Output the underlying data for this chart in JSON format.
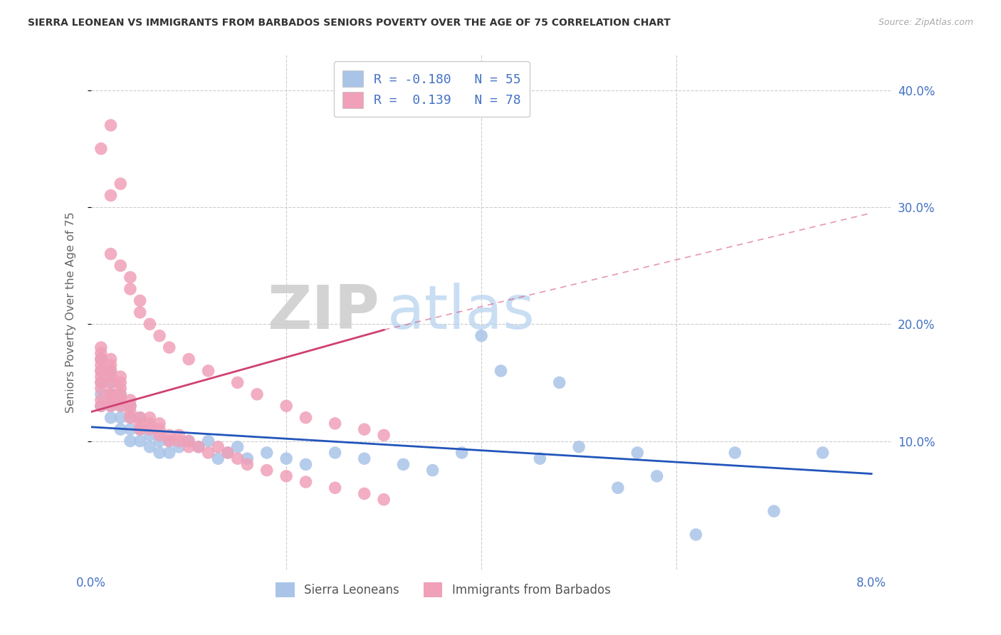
{
  "title": "SIERRA LEONEAN VS IMMIGRANTS FROM BARBADOS SENIORS POVERTY OVER THE AGE OF 75 CORRELATION CHART",
  "source": "Source: ZipAtlas.com",
  "ylabel": "Seniors Poverty Over the Age of 75",
  "xlim": [
    0.0,
    0.082
  ],
  "ylim": [
    -0.01,
    0.43
  ],
  "yticks": [
    0.1,
    0.2,
    0.3,
    0.4
  ],
  "ytick_labels": [
    "10.0%",
    "20.0%",
    "30.0%",
    "40.0%"
  ],
  "xtick_positions": [
    0.0,
    0.02,
    0.04,
    0.06,
    0.08
  ],
  "xtick_labels": [
    "0.0%",
    "",
    "",
    "",
    "8.0%"
  ],
  "color_blue": "#aac4e8",
  "color_pink": "#f0a0b8",
  "color_blue_line": "#2255bb",
  "color_pink_line": "#d04070",
  "color_text": "#4472c4",
  "color_grid": "#cccccc",
  "background": "#ffffff",
  "blue_trend": [
    0.112,
    0.072
  ],
  "pink_trend_solid": [
    0.125,
    0.195,
    0.03
  ],
  "pink_trend_dashed": [
    0.03,
    0.08,
    0.195,
    0.295
  ],
  "blue_x": [
    0.001,
    0.001,
    0.001,
    0.001,
    0.001,
    0.002,
    0.002,
    0.002,
    0.002,
    0.002,
    0.003,
    0.003,
    0.003,
    0.003,
    0.004,
    0.004,
    0.004,
    0.004,
    0.005,
    0.005,
    0.005,
    0.006,
    0.006,
    0.007,
    0.007,
    0.008,
    0.008,
    0.009,
    0.01,
    0.011,
    0.012,
    0.013,
    0.014,
    0.015,
    0.016,
    0.018,
    0.02,
    0.022,
    0.025,
    0.028,
    0.032,
    0.035,
    0.038,
    0.042,
    0.046,
    0.05,
    0.054,
    0.058,
    0.062,
    0.066,
    0.04,
    0.048,
    0.056,
    0.07,
    0.075
  ],
  "blue_y": [
    0.15,
    0.16,
    0.17,
    0.13,
    0.14,
    0.12,
    0.13,
    0.14,
    0.15,
    0.16,
    0.11,
    0.12,
    0.13,
    0.14,
    0.1,
    0.11,
    0.12,
    0.13,
    0.1,
    0.11,
    0.12,
    0.095,
    0.105,
    0.09,
    0.1,
    0.09,
    0.1,
    0.095,
    0.1,
    0.095,
    0.1,
    0.085,
    0.09,
    0.095,
    0.085,
    0.09,
    0.085,
    0.08,
    0.09,
    0.085,
    0.08,
    0.075,
    0.09,
    0.16,
    0.085,
    0.095,
    0.06,
    0.07,
    0.02,
    0.09,
    0.19,
    0.15,
    0.09,
    0.04,
    0.09
  ],
  "pink_x": [
    0.001,
    0.001,
    0.001,
    0.001,
    0.001,
    0.001,
    0.001,
    0.001,
    0.001,
    0.001,
    0.002,
    0.002,
    0.002,
    0.002,
    0.002,
    0.002,
    0.002,
    0.002,
    0.002,
    0.003,
    0.003,
    0.003,
    0.003,
    0.003,
    0.003,
    0.004,
    0.004,
    0.004,
    0.004,
    0.005,
    0.005,
    0.005,
    0.006,
    0.006,
    0.006,
    0.007,
    0.007,
    0.007,
    0.008,
    0.008,
    0.009,
    0.009,
    0.01,
    0.01,
    0.011,
    0.012,
    0.013,
    0.014,
    0.015,
    0.016,
    0.018,
    0.02,
    0.022,
    0.025,
    0.028,
    0.03,
    0.001,
    0.002,
    0.003,
    0.002,
    0.002,
    0.003,
    0.004,
    0.004,
    0.005,
    0.005,
    0.006,
    0.007,
    0.008,
    0.01,
    0.012,
    0.015,
    0.017,
    0.02,
    0.022,
    0.025,
    0.028,
    0.03
  ],
  "pink_y": [
    0.16,
    0.17,
    0.175,
    0.18,
    0.155,
    0.165,
    0.13,
    0.135,
    0.145,
    0.15,
    0.14,
    0.15,
    0.155,
    0.16,
    0.165,
    0.17,
    0.13,
    0.135,
    0.14,
    0.13,
    0.135,
    0.14,
    0.145,
    0.15,
    0.155,
    0.12,
    0.125,
    0.13,
    0.135,
    0.11,
    0.115,
    0.12,
    0.11,
    0.115,
    0.12,
    0.105,
    0.11,
    0.115,
    0.1,
    0.105,
    0.1,
    0.105,
    0.095,
    0.1,
    0.095,
    0.09,
    0.095,
    0.09,
    0.085,
    0.08,
    0.075,
    0.07,
    0.065,
    0.06,
    0.055,
    0.05,
    0.35,
    0.37,
    0.32,
    0.31,
    0.26,
    0.25,
    0.24,
    0.23,
    0.22,
    0.21,
    0.2,
    0.19,
    0.18,
    0.17,
    0.16,
    0.15,
    0.14,
    0.13,
    0.12,
    0.115,
    0.11,
    0.105
  ]
}
